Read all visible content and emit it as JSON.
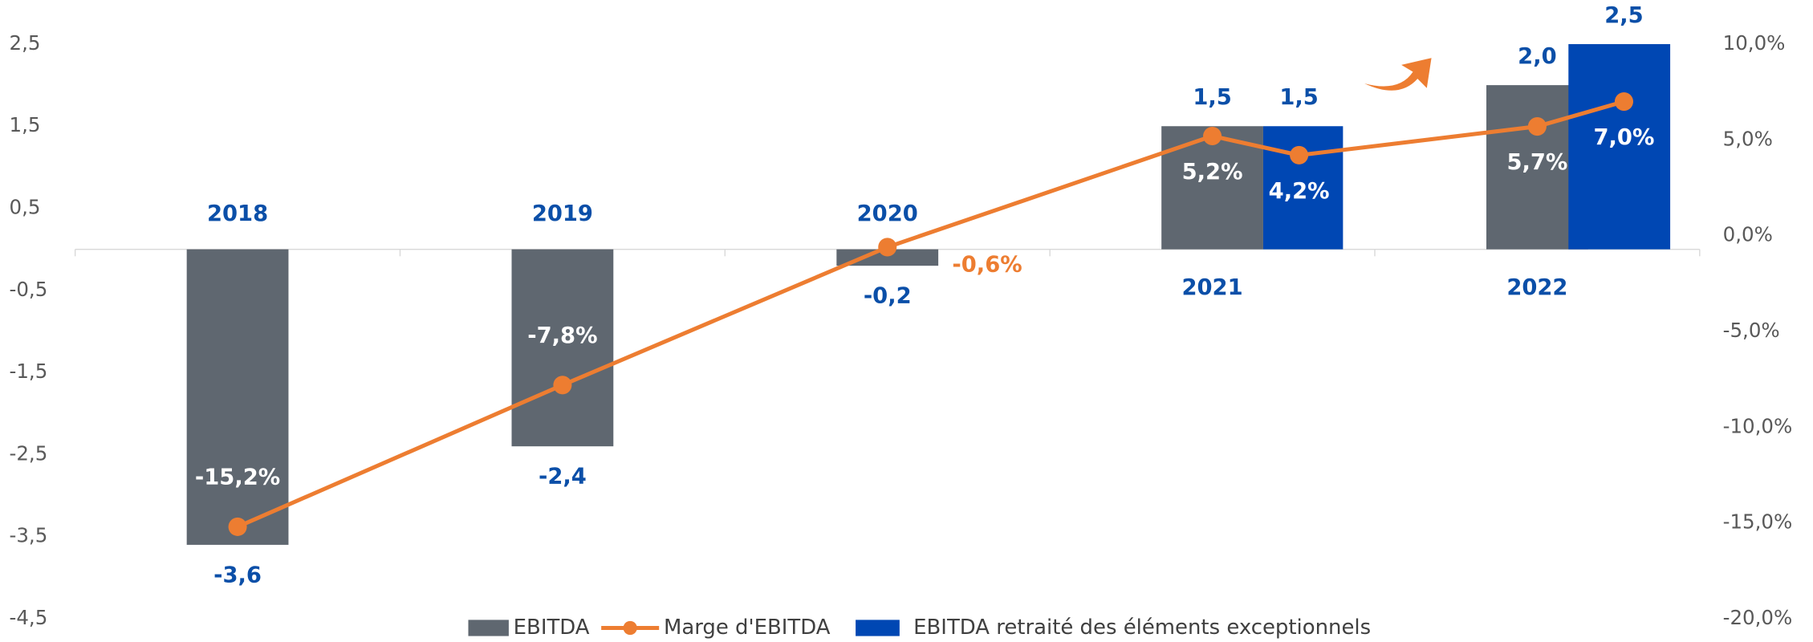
{
  "chart_data": {
    "type": "bar",
    "categories": [
      "2018",
      "2019",
      "2020",
      "2021",
      "2022"
    ],
    "series": [
      {
        "name": "EBITDA",
        "color": "#5f6770",
        "values": [
          -3.6,
          -2.4,
          -0.2,
          1.5,
          2.0
        ],
        "value_labels": [
          "-3,6",
          "-2,4",
          "-0,2",
          "1,5",
          "2,0"
        ]
      },
      {
        "name": "Marge d'EBITDA",
        "color": "#ed7d31",
        "type": "line",
        "axis": "y2",
        "values": [
          [
            -15.2
          ],
          [
            -7.8
          ],
          [
            -0.6
          ],
          [
            5.2,
            4.2
          ],
          [
            5.7,
            7.0
          ]
        ],
        "value_labels": [
          [
            "-15,2%"
          ],
          [
            "-7,8%"
          ],
          [
            "-0,6%"
          ],
          [
            "5,2%",
            "4,2%"
          ],
          [
            "5,7%",
            "7,0%"
          ]
        ]
      },
      {
        "name": "EBITDA retraité des éléments exceptionnels",
        "color": "#0047b3",
        "values": [
          null,
          null,
          null,
          1.5,
          2.5
        ],
        "value_labels": [
          null,
          null,
          null,
          "1,5",
          "2,5"
        ]
      }
    ],
    "ylim": [
      -4.5,
      2.5
    ],
    "yticks": [
      {
        "value": 2.5,
        "label": "2,5"
      },
      {
        "value": 1.5,
        "label": "1,5"
      },
      {
        "value": 0.5,
        "label": "0,5"
      },
      {
        "value": -0.5,
        "label": "-0,5"
      },
      {
        "value": -1.5,
        "label": "-1,5"
      },
      {
        "value": -2.5,
        "label": "-2,5"
      },
      {
        "value": -3.5,
        "label": "-3,5"
      },
      {
        "value": -4.5,
        "label": "-4,5"
      }
    ],
    "y2lim": [
      -20,
      10
    ],
    "y2ticks": [
      {
        "value": 10,
        "label": "10,0%"
      },
      {
        "value": 5,
        "label": "5,0%"
      },
      {
        "value": 0,
        "label": "0,0%"
      },
      {
        "value": -5,
        "label": "-5,0%"
      },
      {
        "value": -10,
        "label": "-10,0%"
      },
      {
        "value": -15,
        "label": "-15,0%"
      },
      {
        "value": -20,
        "label": "-20,0%"
      }
    ],
    "legend": "bottom"
  }
}
